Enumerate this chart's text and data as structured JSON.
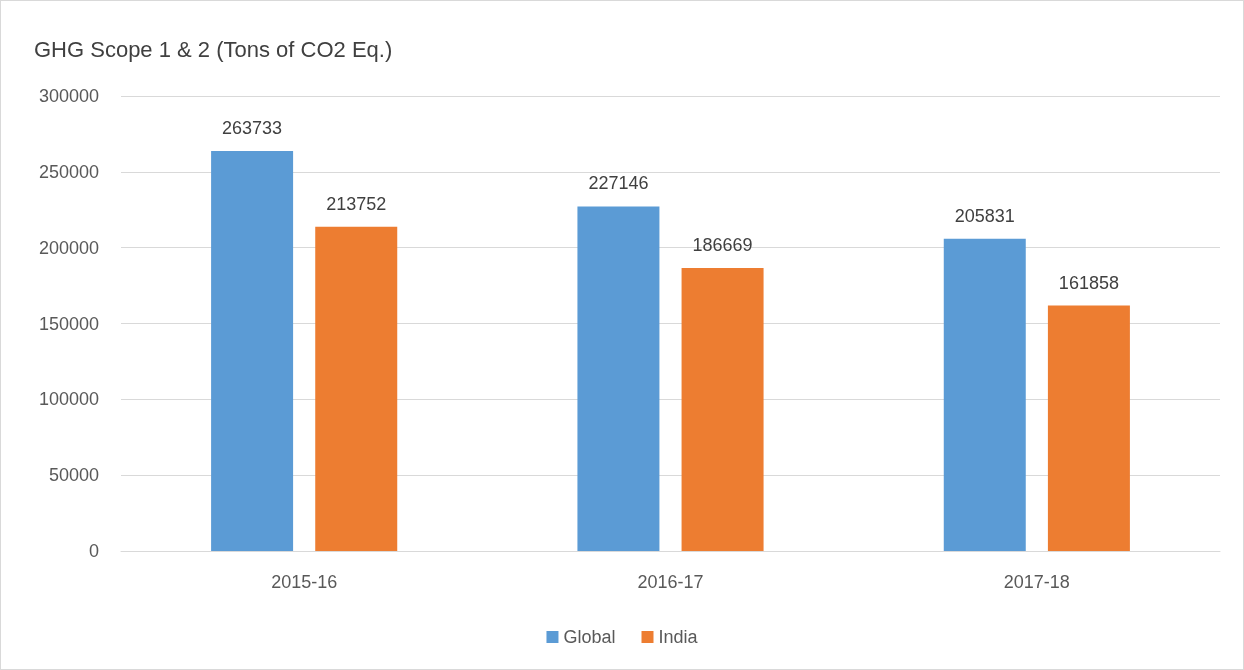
{
  "chart_data": {
    "type": "bar",
    "title": "GHG Scope 1 & 2 (Tons of CO2 Eq.)",
    "categories": [
      "2015-16",
      "2016-17",
      "2017-18"
    ],
    "series": [
      {
        "name": "Global",
        "color": "#5b9bd5",
        "values": [
          263733,
          227146,
          205831
        ]
      },
      {
        "name": "India",
        "color": "#ed7d31",
        "values": [
          213752,
          186669,
          161858
        ]
      }
    ],
    "ylim": [
      0,
      300000
    ],
    "yticks": [
      0,
      50000,
      100000,
      150000,
      200000,
      250000,
      300000
    ],
    "grid": "y",
    "legend": "bottom",
    "data_labels": true
  }
}
